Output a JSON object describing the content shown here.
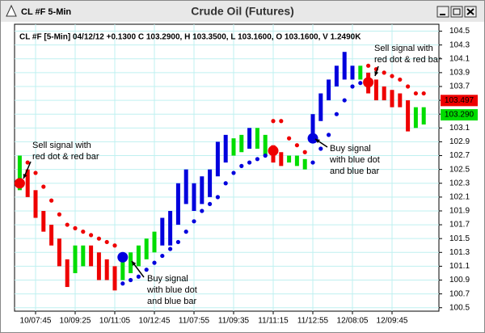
{
  "chart_data": {
    "type": "ohlc",
    "window_title": "CL #F 5-Min",
    "title": "Crude Oil (Futures)",
    "info": "CL #F [5-Min] 04/12/12 +0.1300 C 103.2900, H 103.3500, L 103.1600, O 103.1600, V 1.2490K",
    "categories": [
      null,
      null,
      "10/07:45",
      null,
      null,
      null,
      null,
      "10/09:25",
      null,
      null,
      null,
      null,
      "10/11:05",
      null,
      null,
      null,
      null,
      "10/12:45",
      null,
      null,
      null,
      null,
      "11/07:55",
      null,
      null,
      null,
      null,
      "11/09:35",
      null,
      null,
      null,
      null,
      "11/11:15",
      null,
      null,
      null,
      null,
      "11/12:55",
      null,
      null,
      null,
      null,
      "12/08:05",
      null,
      null,
      null,
      null,
      "12/09:45",
      null,
      null,
      null,
      null
    ],
    "high": [
      102.7,
      102.5,
      102.2,
      101.9,
      101.7,
      101.5,
      101.2,
      101.4,
      101.4,
      101.4,
      101.3,
      101.2,
      101.1,
      101.2,
      101.3,
      101.4,
      101.5,
      101.6,
      101.8,
      101.9,
      102.3,
      102.5,
      102.3,
      102.4,
      102.5,
      102.9,
      103.0,
      102.95,
      103.0,
      103.1,
      103.1,
      103.0,
      102.85,
      102.75,
      102.7,
      102.7,
      102.65,
      103.3,
      103.6,
      103.8,
      104.0,
      104.2,
      104.0,
      104.0,
      103.9,
      103.8,
      103.7,
      103.65,
      103.6,
      103.5,
      103.4,
      103.4
    ],
    "low": [
      102.2,
      102.1,
      101.8,
      101.6,
      101.4,
      101.1,
      100.8,
      101.0,
      101.1,
      101.1,
      100.9,
      100.9,
      100.75,
      100.9,
      101.0,
      101.1,
      101.2,
      101.3,
      101.4,
      101.4,
      101.7,
      102.0,
      101.9,
      102.0,
      102.1,
      102.4,
      102.6,
      102.7,
      102.75,
      102.8,
      102.8,
      102.7,
      102.6,
      102.55,
      102.6,
      102.55,
      102.5,
      102.9,
      103.2,
      103.5,
      103.7,
      103.8,
      103.8,
      103.8,
      103.6,
      103.5,
      103.5,
      103.4,
      103.4,
      103.05,
      103.1,
      103.15
    ],
    "bar_colors": [
      "#00dd00",
      "#ee0000",
      "#ee0000",
      "#ee0000",
      "#ee0000",
      "#ee0000",
      "#ee0000",
      "#00dd00",
      "#00dd00",
      "#ee0000",
      "#ee0000",
      "#ee0000",
      "#ee0000",
      "#00dd00",
      "#00dd00",
      "#00dd00",
      "#00dd00",
      "#00dd00",
      "#0000dd",
      "#0000dd",
      "#0000dd",
      "#0000dd",
      "#0000dd",
      "#0000dd",
      "#0000dd",
      "#0000dd",
      "#0000dd",
      "#00dd00",
      "#00dd00",
      "#0000dd",
      "#00dd00",
      "#00dd00",
      "#ee0000",
      "#ee0000",
      "#00dd00",
      "#00dd00",
      "#00dd00",
      "#0000dd",
      "#0000dd",
      "#0000dd",
      "#0000dd",
      "#0000dd",
      "#0000dd",
      "#00dd00",
      "#ee0000",
      "#ee0000",
      "#ee0000",
      "#ee0000",
      "#ee0000",
      "#ee0000",
      "#00dd00",
      "#00dd00"
    ],
    "sar_sell": [
      null,
      102.6,
      102.45,
      102.25,
      102.05,
      101.85,
      101.7,
      101.65,
      101.6,
      101.55,
      101.5,
      101.45,
      101.4,
      null,
      null,
      null,
      null,
      null,
      null,
      null,
      null,
      null,
      null,
      null,
      null,
      null,
      null,
      null,
      null,
      null,
      null,
      null,
      103.2,
      103.2,
      102.95,
      102.85,
      102.75,
      null,
      null,
      null,
      null,
      null,
      null,
      null,
      104.0,
      103.95,
      103.9,
      103.85,
      103.8,
      103.7,
      103.6,
      103.6
    ],
    "sar_buy": [
      null,
      null,
      null,
      null,
      null,
      null,
      null,
      null,
      null,
      null,
      null,
      null,
      null,
      100.85,
      100.9,
      100.95,
      101.05,
      101.15,
      101.25,
      101.35,
      101.45,
      101.6,
      101.75,
      101.9,
      102.0,
      102.1,
      102.3,
      102.45,
      102.55,
      102.6,
      102.65,
      102.7,
      null,
      null,
      null,
      null,
      null,
      102.6,
      102.8,
      103.0,
      103.3,
      103.5,
      103.7,
      103.75,
      null,
      null,
      null,
      null,
      null,
      null,
      null,
      null
    ],
    "sell_color": "#ee0000",
    "buy_color": "#0000dd",
    "sell_signal": [
      102.3,
      null,
      null,
      null,
      null,
      null,
      null,
      null,
      null,
      null,
      null,
      null,
      null,
      null,
      null,
      null,
      null,
      null,
      null,
      null,
      null,
      null,
      null,
      null,
      null,
      null,
      null,
      null,
      null,
      null,
      null,
      null,
      102.77,
      null,
      null,
      null,
      null,
      null,
      null,
      null,
      null,
      null,
      null,
      null,
      103.76,
      null,
      null,
      null,
      null,
      null,
      null,
      null
    ],
    "buy_signal": [
      null,
      null,
      null,
      null,
      null,
      null,
      null,
      null,
      null,
      null,
      null,
      null,
      null,
      101.23,
      null,
      null,
      null,
      null,
      null,
      null,
      null,
      null,
      null,
      null,
      null,
      null,
      null,
      null,
      null,
      null,
      null,
      null,
      null,
      null,
      null,
      null,
      null,
      102.95,
      null,
      null,
      null,
      null,
      null,
      null,
      null,
      null,
      null,
      null,
      null,
      null,
      null,
      null
    ],
    "annotations": [
      {
        "lines": [
          "Sell signal with",
          "red dot & red bar"
        ]
      },
      {
        "lines": [
          "Buy signal",
          "with blue dot",
          "and blue bar"
        ]
      },
      {
        "lines": [
          "Buy signal",
          "with blue dot",
          "and blue bar"
        ]
      },
      {
        "lines": [
          "Sell signal with",
          "red dot & red bar"
        ]
      }
    ],
    "price_labels": [
      {
        "value": 103.497,
        "color": "#ee0000"
      },
      {
        "value": 103.29,
        "label": "103.290",
        "color": "#00dd00"
      }
    ],
    "ylim": [
      100.45,
      104.6
    ],
    "yticks": [
      104.5,
      104.3,
      104.1,
      103.9,
      103.7,
      103.5,
      103.3,
      103.1,
      102.9,
      102.7,
      102.5,
      102.3,
      102.1,
      101.9,
      101.7,
      101.5,
      101.3,
      101.1,
      100.9,
      100.7,
      100.5
    ],
    "grid": true
  }
}
